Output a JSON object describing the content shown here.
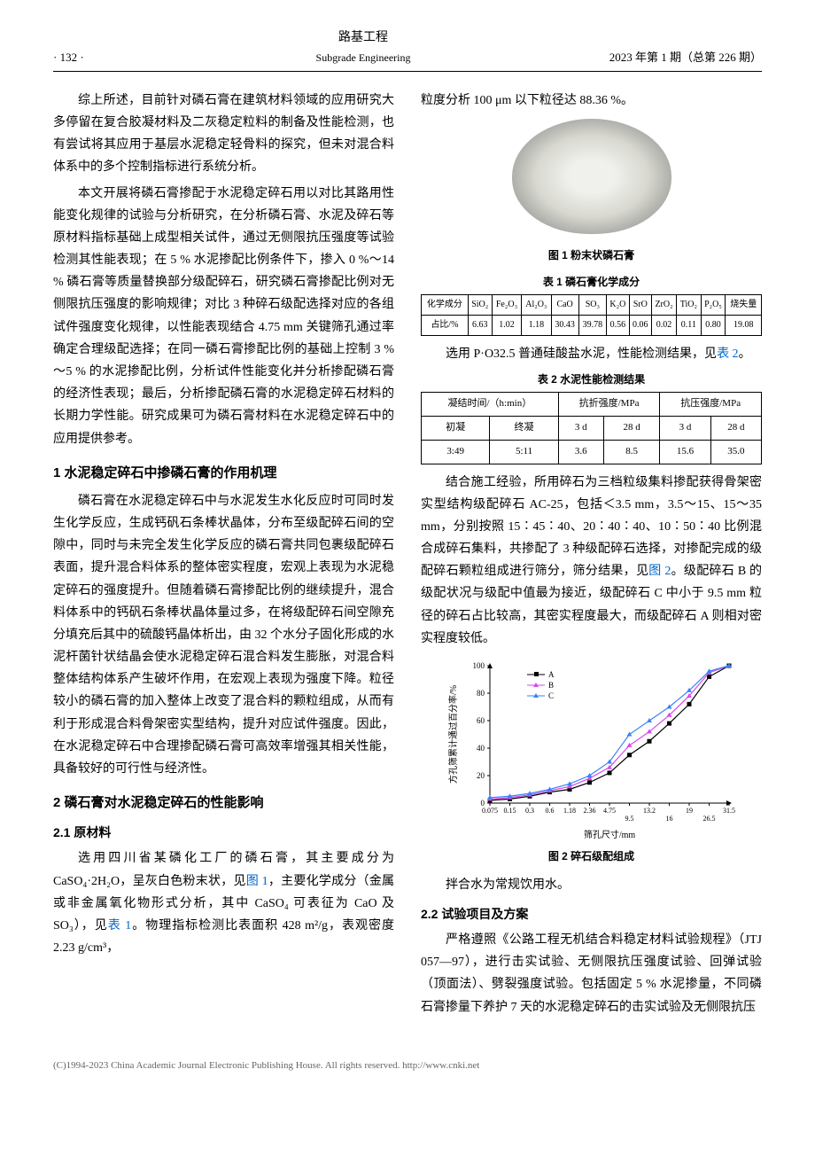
{
  "header": {
    "page": "· 132 ·",
    "title_cn": "路基工程",
    "title_en": "Subgrade Engineering",
    "issue": "2023 年第 1 期（总第 226 期）"
  },
  "left": {
    "p1": "综上所述，目前针对磷石膏在建筑材料领域的应用研究大多停留在复合胶凝材料及二灰稳定粒料的制备及性能检测，也有尝试将其应用于基层水泥稳定轻骨料的探究，但未对混合料体系中的多个控制指标进行系统分析。",
    "p2": "本文开展将磷石膏掺配于水泥稳定碎石用以对比其路用性能变化规律的试验与分析研究，在分析磷石膏、水泥及碎石等原材料指标基础上成型相关试件，通过无侧限抗压强度等试验检测其性能表现；在 5 % 水泥掺配比例条件下，掺入 0 %～14 % 磷石膏等质量替换部分级配碎石，研究磷石膏掺配比例对无侧限抗压强度的影响规律；对比 3 种碎石级配选择对应的各组试件强度变化规律，以性能表现结合 4.75 mm 关键筛孔通过率确定合理级配选择；在同一磷石膏掺配比例的基础上控制 3 %～5 % 的水泥掺配比例，分析试件性能变化并分析掺配磷石膏的经济性表现；最后，分析掺配磷石膏的水泥稳定碎石材料的长期力学性能。研究成果可为磷石膏材料在水泥稳定碎石中的应用提供参考。",
    "s1_title": "1   水泥稳定碎石中掺磷石膏的作用机理",
    "s1_p1": "磷石膏在水泥稳定碎石中与水泥发生水化反应时可同时发生化学反应，生成钙矾石条棒状晶体，分布至级配碎石间的空隙中，同时与未完全发生化学反应的磷石膏共同包裹级配碎石表面，提升混合料体系的整体密实程度，宏观上表现为水泥稳定碎石的强度提升。但随着磷石膏掺配比例的继续提升，混合料体系中的钙矾石条棒状晶体量过多，在将级配碎石间空隙充分填充后其中的硫酸钙晶体析出，由 32 个水分子固化形成的水泥杆菌针状结晶会使水泥稳定碎石混合料发生膨胀，对混合料整体结构体系产生破坏作用，在宏观上表现为强度下降。粒径较小的磷石膏的加入整体上改变了混合料的颗粒组成，从而有利于形成混合料骨架密实型结构，提升对应试件强度。因此，在水泥稳定碎石中合理掺配磷石膏可高效率增强其相关性能，具备较好的可行性与经济性。",
    "s2_title": "2   磷石膏对水泥稳定碎石的性能影响",
    "s21_title": "2.1   原材料",
    "s21_p1a": "选用四川省某磷化工厂的磷石膏，其主要成分为 CaSO₄·2H₂O，呈灰白色粉末状，见",
    "s21_link1": "图 1",
    "s21_p1b": "，主要化学成分（金属或非金属氧化物形式分析，其中 CaSO₄ 可表征为 CaO 及 SO₃），见",
    "s21_link2": "表 1",
    "s21_p1c": "。物理指标检测比表面积 428 m²/g，表观密度 2.23 g/cm³，"
  },
  "right": {
    "p1": "粒度分析 100 μm 以下粒径达 88.36 %。",
    "fig1_caption": "图 1   粉末状磷石膏",
    "tbl1_caption": "表 1   磷石膏化学成分",
    "tbl1": {
      "header": [
        "化学成分",
        "SiO₂",
        "Fe₂O₃",
        "Al₂O₃",
        "CaO",
        "SO₃",
        "K₂O",
        "SrO",
        "ZrO₂",
        "TiO₂",
        "P₂O₅",
        "烧失量"
      ],
      "row": [
        "占比/%",
        "6.63",
        "1.02",
        "1.18",
        "30.43",
        "39.78",
        "0.56",
        "0.06",
        "0.02",
        "0.11",
        "0.80",
        "19.08"
      ]
    },
    "p2a": "选用 P·O32.5 普通硅酸盐水泥，性能检测结果，见",
    "p2_link": "表 2",
    "p2b": "。",
    "tbl2_caption": "表 2   水泥性能检测结果",
    "tbl2": {
      "h1": [
        "凝结时间/（h:min）",
        "抗折强度/MPa",
        "抗压强度/MPa"
      ],
      "h2": [
        "初凝",
        "终凝",
        "3 d",
        "28 d",
        "3 d",
        "28 d"
      ],
      "row": [
        "3:49",
        "5:11",
        "3.6",
        "8.5",
        "15.6",
        "35.0"
      ]
    },
    "p3a": "结合施工经验，所用碎石为三档粒级集料掺配获得骨架密实型结构级配碎石 AC-25，包括＜3.5 mm，3.5～15、15～35 mm，分别按照 15∶45∶40、20∶40∶40、10∶50∶40 比例混合成碎石集料，共掺配了 3 种级配碎石选择，对掺配完成的级配碎石颗粒组成进行筛分，筛分结果，见",
    "p3_link": "图 2",
    "p3b": "。级配碎石 B 的级配状况与级配中值最为接近，级配碎石 C 中小于 9.5 mm 粒径的碎石占比较高，其密实程度最大，而级配碎石 A 则相对密实程度较低。",
    "fig2_caption": "图 2   碎石级配组成",
    "chart": {
      "x_labels": [
        "0.075",
        "0.15",
        "0.3",
        "0.6",
        "1.18",
        "2.36",
        "4.75",
        "9.5",
        "13.2",
        "16",
        "19",
        "26.5",
        "31.5"
      ],
      "y_ticks": [
        0,
        20,
        40,
        60,
        80,
        100
      ],
      "x_axis_label": "筛孔尺寸/mm",
      "y_axis_label": "方孔筛累计通过百分率/%",
      "series": [
        {
          "name": "A",
          "color": "#000000",
          "marker": "square",
          "y": [
            2,
            3,
            5,
            8,
            10,
            15,
            22,
            35,
            45,
            58,
            72,
            92,
            100
          ]
        },
        {
          "name": "B",
          "color": "#d946ef",
          "marker": "triangle",
          "y": [
            3,
            4,
            6,
            9,
            12,
            18,
            26,
            42,
            52,
            64,
            78,
            95,
            100
          ]
        },
        {
          "name": "C",
          "color": "#3b82f6",
          "marker": "triangle",
          "y": [
            4,
            5,
            7,
            10,
            14,
            20,
            30,
            50,
            60,
            70,
            82,
            96,
            100
          ]
        }
      ]
    },
    "p4": "拌合水为常规饮用水。",
    "s22_title": "2.2   试验项目及方案",
    "s22_p1": "严格遵照《公路工程无机结合料稳定材料试验规程》（JTJ 057—97），进行击实试验、无侧限抗压强度试验、回弹试验（顶面法）、劈裂强度试验。包括固定 5 % 水泥掺量，不同磷石膏掺量下养护 7 天的水泥稳定碎石的击实试验及无侧限抗压"
  },
  "footer": "(C)1994-2023 China Academic Journal Electronic Publishing House. All rights reserved.   http://www.cnki.net"
}
